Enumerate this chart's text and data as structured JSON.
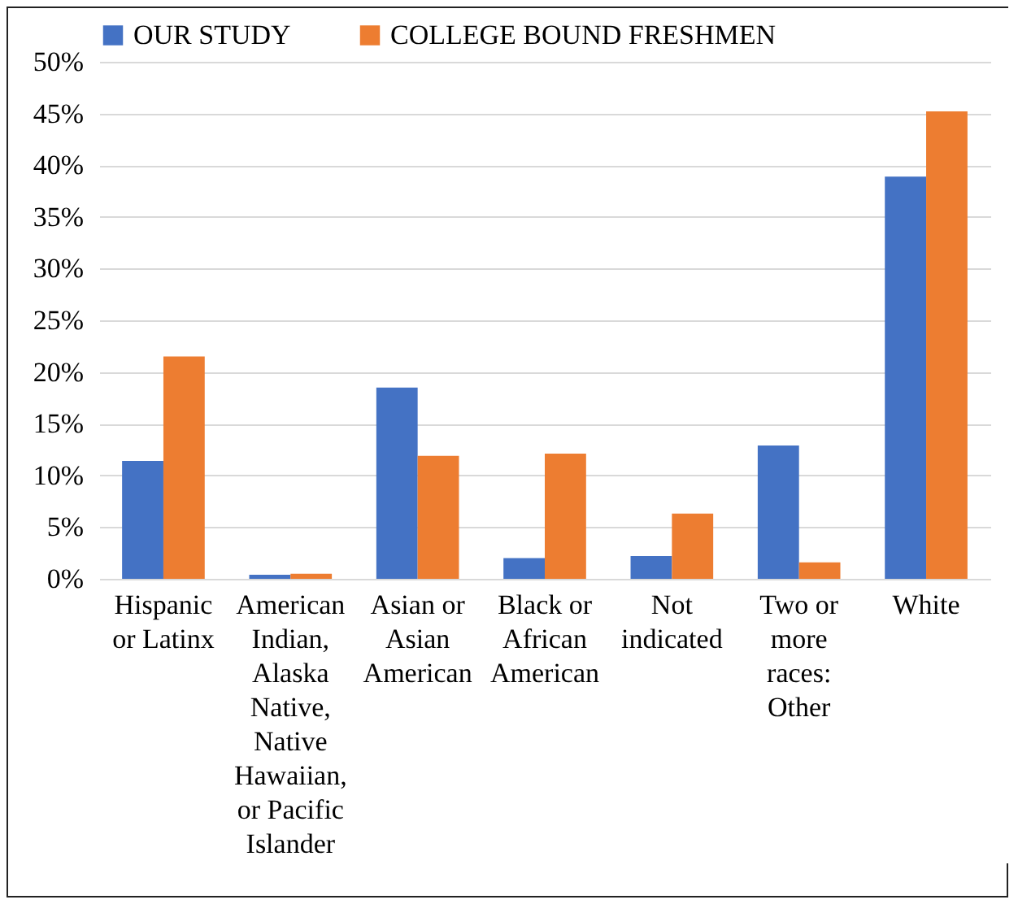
{
  "chart_data": {
    "type": "bar",
    "categories": [
      "Hispanic or Latinx",
      "American Indian, Alaska Native, Native Hawaiian, or Pacific Islander",
      "Asian or Asian American",
      "Black or African American",
      "Not indicated",
      "Two or more races: Other",
      "White"
    ],
    "series": [
      {
        "name": "OUR STUDY",
        "color": "#4472c4",
        "values": [
          11.4,
          0.4,
          18.5,
          2.0,
          2.2,
          12.9,
          38.9
        ]
      },
      {
        "name": "COLLEGE BOUND FRESHMEN",
        "color": "#ed7d31",
        "values": [
          21.5,
          0.5,
          11.9,
          12.1,
          6.3,
          1.6,
          45.2
        ]
      }
    ],
    "ylim": [
      0,
      50
    ],
    "yticks": [
      {
        "value": 0,
        "label": "0%"
      },
      {
        "value": 5,
        "label": "5%"
      },
      {
        "value": 10,
        "label": "10%"
      },
      {
        "value": 15,
        "label": "15%"
      },
      {
        "value": 20,
        "label": "20%"
      },
      {
        "value": 25,
        "label": "25%"
      },
      {
        "value": 30,
        "label": "30%"
      },
      {
        "value": 35,
        "label": "35%"
      },
      {
        "value": 40,
        "label": "40%"
      },
      {
        "value": 45,
        "label": "45%"
      },
      {
        "value": 50,
        "label": "50%"
      }
    ],
    "grid": true,
    "legend": "top"
  }
}
